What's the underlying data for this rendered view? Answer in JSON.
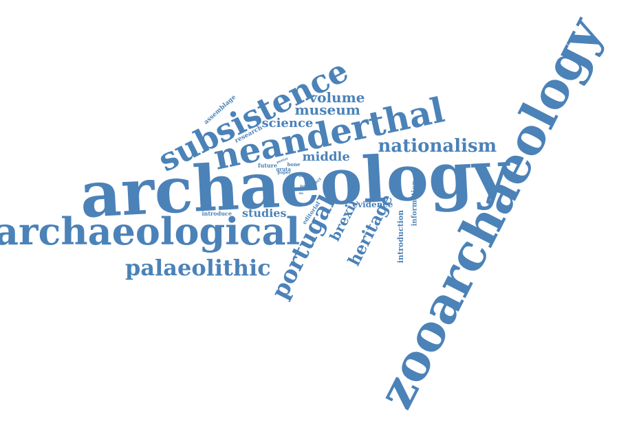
{
  "color": "#4b82b8",
  "words": [
    {
      "text": "zooarchaeology",
      "weight": 100
    },
    {
      "text": "archaeology",
      "weight": 92
    },
    {
      "text": "archaeological",
      "weight": 62
    },
    {
      "text": "neanderthal",
      "weight": 54
    },
    {
      "text": "subsistence",
      "weight": 50
    },
    {
      "text": "palaeolithic",
      "weight": 36
    },
    {
      "text": "portugal",
      "weight": 36
    },
    {
      "text": "nationalism",
      "weight": 30
    },
    {
      "text": "heritage",
      "weight": 26
    },
    {
      "text": "museum",
      "weight": 22
    },
    {
      "text": "volume",
      "weight": 22
    },
    {
      "text": "brexit",
      "weight": 22
    },
    {
      "text": "science",
      "weight": 20
    },
    {
      "text": "middle",
      "weight": 20
    },
    {
      "text": "studies",
      "weight": 18
    },
    {
      "text": "evidence",
      "weight": 14
    },
    {
      "text": "introduction",
      "weight": 12
    },
    {
      "text": "information",
      "weight": 11
    },
    {
      "text": "assemblage",
      "weight": 10
    },
    {
      "text": "research",
      "weight": 10
    },
    {
      "text": "introduce",
      "weight": 9
    },
    {
      "text": "editorial",
      "weight": 9
    },
    {
      "text": "future",
      "weight": 8
    },
    {
      "text": "bone",
      "weight": 8
    },
    {
      "text": "gruta",
      "weight": 7
    },
    {
      "text": "paper",
      "weight": 6
    },
    {
      "text": "project",
      "weight": 6
    },
    {
      "text": "past",
      "weight": 6
    },
    {
      "text": "site",
      "weight": 5
    },
    {
      "text": "poster",
      "weight": 5
    },
    {
      "text": "de",
      "weight": 5
    }
  ]
}
